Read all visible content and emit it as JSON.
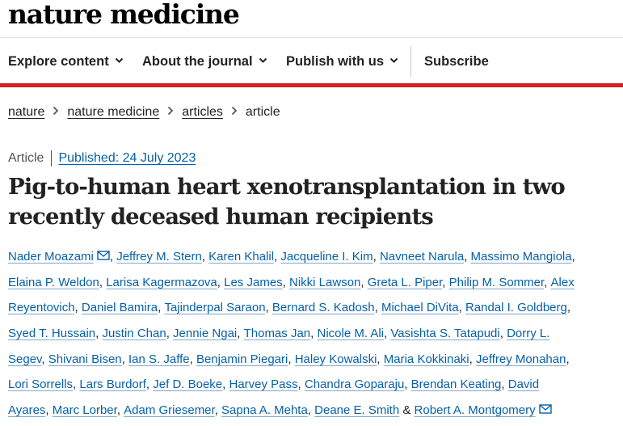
{
  "header": {
    "logo": "nature medicine",
    "brand_red": "#d81c24"
  },
  "nav": {
    "items": [
      {
        "label": "Explore content",
        "dropdown": true
      },
      {
        "label": "About the journal",
        "dropdown": true
      },
      {
        "label": "Publish with us",
        "dropdown": true
      },
      {
        "label": "Subscribe",
        "dropdown": false
      }
    ]
  },
  "breadcrumb": {
    "items": [
      "nature",
      "nature medicine",
      "articles"
    ],
    "current": "article"
  },
  "article": {
    "type": "Article",
    "published": "Published: 24 July 2023",
    "title_line1": "Pig-to-human heart xenotransplantation in two",
    "title_line2": "recently deceased human recipients"
  },
  "authors": {
    "link_color": "#0560a8",
    "lines": [
      [
        {
          "name": "Nader Moazami",
          "mail": true,
          "sep": ", "
        },
        {
          "name": "Jeffrey M. Stern",
          "sep": ", "
        },
        {
          "name": "Karen Khalil",
          "sep": ", "
        },
        {
          "name": "Jacqueline I. Kim",
          "sep": ", "
        },
        {
          "name": "Navneet Narula",
          "sep": ", "
        },
        {
          "name": "Massimo Mangiola",
          "sep": ","
        }
      ],
      [
        {
          "name": "Elaina P. Weldon",
          "sep": ", "
        },
        {
          "name": "Larisa Kagermazova",
          "sep": ", "
        },
        {
          "name": "Les James",
          "sep": ", "
        },
        {
          "name": "Nikki Lawson",
          "sep": ", "
        },
        {
          "name": "Greta L. Piper",
          "sep": ", "
        },
        {
          "name": "Philip M. Sommer",
          "sep": ", "
        },
        {
          "name": "Alex",
          "sep": ""
        }
      ],
      [
        {
          "name": "Reyentovich",
          "sep": ", "
        },
        {
          "name": "Daniel Bamira",
          "sep": ", "
        },
        {
          "name": "Tajinderpal Saraon",
          "sep": ", "
        },
        {
          "name": "Bernard S. Kadosh",
          "sep": ", "
        },
        {
          "name": "Michael DiVita",
          "sep": ", "
        },
        {
          "name": "Randal I. Goldberg",
          "sep": ","
        }
      ],
      [
        {
          "name": "Syed T. Hussain",
          "sep": ", "
        },
        {
          "name": "Justin Chan",
          "sep": ", "
        },
        {
          "name": "Jennie Ngai",
          "sep": ", "
        },
        {
          "name": "Thomas Jan",
          "sep": ", "
        },
        {
          "name": "Nicole M. Ali",
          "sep": ", "
        },
        {
          "name": "Vasishta S. Tatapudi",
          "sep": ", "
        },
        {
          "name": "Dorry L.",
          "sep": ""
        }
      ],
      [
        {
          "name": "Segev",
          "sep": ", "
        },
        {
          "name": "Shivani Bisen",
          "sep": ", "
        },
        {
          "name": "Ian S. Jaffe",
          "sep": ", "
        },
        {
          "name": "Benjamin Piegari",
          "sep": ", "
        },
        {
          "name": "Haley Kowalski",
          "sep": ", "
        },
        {
          "name": "Maria Kokkinaki",
          "sep": ", "
        },
        {
          "name": "Jeffrey Monahan",
          "sep": ","
        }
      ],
      [
        {
          "name": "Lori Sorrells",
          "sep": ", "
        },
        {
          "name": "Lars Burdorf",
          "sep": ", "
        },
        {
          "name": "Jef D. Boeke",
          "sep": ", "
        },
        {
          "name": "Harvey Pass",
          "sep": ", "
        },
        {
          "name": "Chandra Goparaju",
          "sep": ", "
        },
        {
          "name": "Brendan Keating",
          "sep": ", "
        },
        {
          "name": "David",
          "sep": ""
        }
      ],
      [
        {
          "name": "Ayares",
          "sep": ", "
        },
        {
          "name": "Marc Lorber",
          "sep": ", "
        },
        {
          "name": "Adam Griesemer",
          "sep": ", "
        },
        {
          "name": "Sapna A. Mehta",
          "sep": ", "
        },
        {
          "name": "Deane E. Smith",
          "sep": " & "
        },
        {
          "name": "Robert A. Montgomery",
          "mail": true,
          "sep": ""
        }
      ]
    ]
  }
}
